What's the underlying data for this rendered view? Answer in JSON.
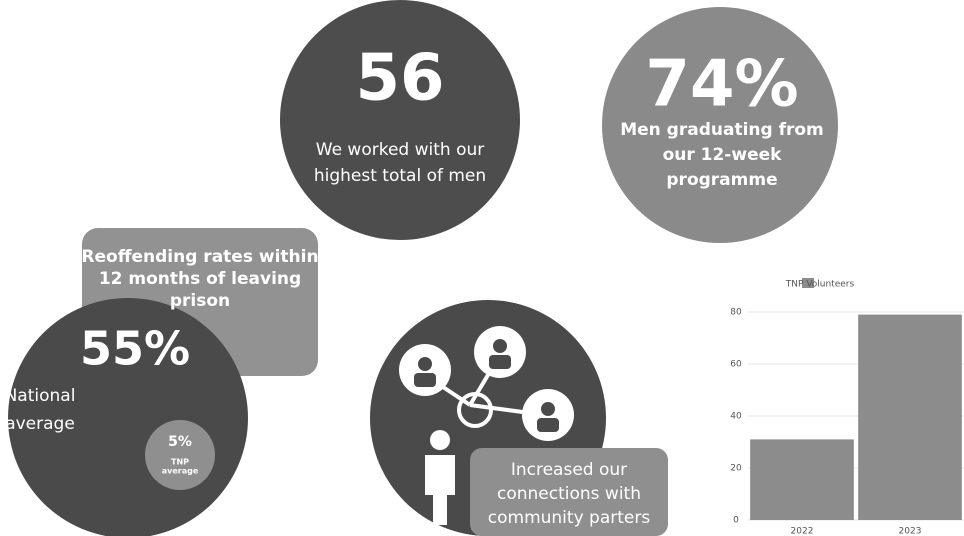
{
  "stats": [
    {
      "value": "56",
      "lines": [
        "We worked with our",
        "highest total of men"
      ]
    },
    {
      "value": "74%",
      "lines": [
        "Men graduating from",
        "our 12-week",
        "programme"
      ]
    }
  ],
  "reoffending": {
    "heading": [
      "Reoffending rates within",
      "12 months of leaving",
      "prison"
    ],
    "national": {
      "value": "55%",
      "lines": [
        "National",
        "average"
      ]
    },
    "tnp": {
      "value": "5%",
      "lines": [
        "TNP",
        "average"
      ]
    }
  },
  "connections": {
    "lines": [
      "Increased our",
      "connections with",
      "community parters"
    ]
  },
  "chart_data": {
    "type": "bar",
    "categories": [
      "2022",
      "2023"
    ],
    "series": [
      {
        "name": "TNP Volunteers",
        "color": "#8c8c8c",
        "values": [
          31,
          79
        ]
      }
    ],
    "ylim": [
      0,
      80
    ],
    "yticks": [
      0,
      20,
      40,
      60,
      80
    ],
    "grid": true
  }
}
